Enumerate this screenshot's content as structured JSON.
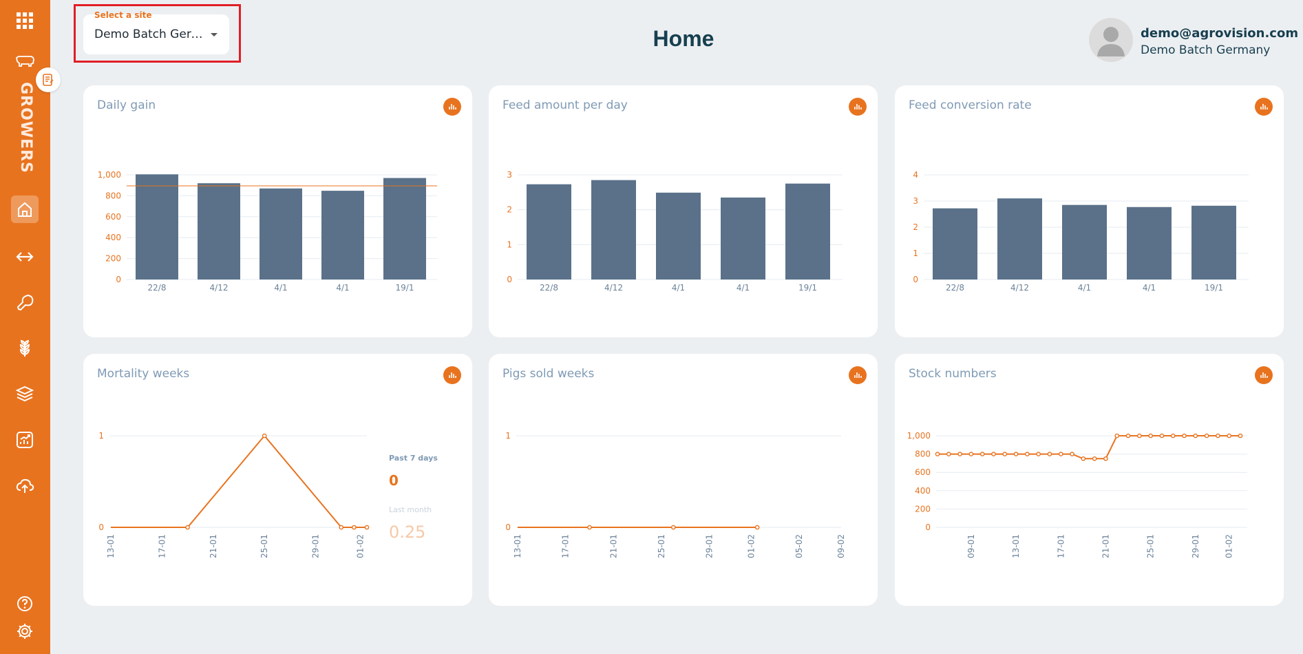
{
  "header": {
    "title": "Home",
    "site_label": "Select a site",
    "site_value": "Demo Batch Germ...",
    "user_email": "demo@agrovision.com",
    "user_site": "Demo Batch Germany"
  },
  "sidebar": {
    "section_label": "GROWERS",
    "items": [
      "apps-icon",
      "pig-icon",
      "notes-icon",
      "home-icon",
      "transfer-icon",
      "meat-icon",
      "grain-icon",
      "layers-icon",
      "chart-icon",
      "upload-icon",
      "help-icon",
      "settings-icon"
    ]
  },
  "colors": {
    "accent": "#e8731f",
    "bar": "#5a7189",
    "title": "#173f4f"
  },
  "cards": {
    "daily_gain": {
      "title": "Daily gain"
    },
    "feed_amount": {
      "title": "Feed amount per day"
    },
    "fcr": {
      "title": "Feed conversion rate"
    },
    "mortality": {
      "title": "Mortality weeks",
      "past_label": "Past 7 days",
      "past_value": "0",
      "month_label": "Last month",
      "month_value": "0.25"
    },
    "pigs_sold": {
      "title": "Pigs sold weeks"
    },
    "stock": {
      "title": "Stock numbers"
    }
  },
  "chart_data": [
    {
      "id": "daily_gain",
      "type": "bar",
      "title": "Daily gain",
      "categories": [
        "22/8",
        "4/12",
        "4/1",
        "4/1",
        "19/1"
      ],
      "values": [
        1005,
        920,
        870,
        848,
        970
      ],
      "yticks": [
        0,
        200,
        400,
        600,
        800,
        1000
      ],
      "ytick_labels": [
        "0",
        "200",
        "400",
        "600",
        "800",
        "1,000"
      ],
      "ylim": [
        0,
        1000
      ],
      "reference_line": 895
    },
    {
      "id": "feed_amount",
      "type": "bar",
      "title": "Feed amount per day",
      "categories": [
        "22/8",
        "4/12",
        "4/1",
        "4/1",
        "19/1"
      ],
      "values": [
        2.73,
        2.85,
        2.49,
        2.35,
        2.75
      ],
      "yticks": [
        0,
        1,
        2,
        3
      ],
      "ytick_labels": [
        "0",
        "1",
        "2",
        "3"
      ],
      "ylim": [
        0,
        3
      ]
    },
    {
      "id": "fcr",
      "type": "bar",
      "title": "Feed conversion rate",
      "categories": [
        "22/8",
        "4/12",
        "4/1",
        "4/1",
        "19/1"
      ],
      "values": [
        2.72,
        3.1,
        2.85,
        2.77,
        2.82
      ],
      "yticks": [
        0,
        1,
        2,
        3,
        4
      ],
      "ytick_labels": [
        "0",
        "1",
        "2",
        "3",
        "4"
      ],
      "ylim": [
        0,
        4
      ]
    },
    {
      "id": "mortality",
      "type": "line",
      "title": "Mortality weeks",
      "x": [
        0,
        6,
        12,
        18,
        19,
        20
      ],
      "values": [
        0,
        0,
        1,
        0,
        0,
        0
      ],
      "x_domain": [
        0,
        20
      ],
      "x_ticks": [
        "13-01",
        "17-01",
        "21-01",
        "25-01",
        "29-01",
        "01-02"
      ],
      "x_tick_pos": [
        0,
        4,
        8,
        12,
        16,
        19.5
      ],
      "yticks": [
        0,
        1
      ],
      "ytick_labels": [
        "0",
        "1"
      ],
      "ylim": [
        0,
        1
      ]
    },
    {
      "id": "pigs_sold",
      "type": "line",
      "title": "Pigs sold weeks",
      "x": [
        6,
        13,
        20
      ],
      "values": [
        0,
        0,
        0
      ],
      "x_domain": [
        0,
        27
      ],
      "line_from": 0,
      "x_ticks": [
        "13-01",
        "17-01",
        "21-01",
        "25-01",
        "29-01",
        "01-02",
        "05-02",
        "09-02"
      ],
      "x_tick_pos": [
        0,
        4,
        8,
        12,
        16,
        19.5,
        23.5,
        27
      ],
      "yticks": [
        0,
        1
      ],
      "ytick_labels": [
        "0",
        "1"
      ],
      "ylim": [
        0,
        1
      ]
    },
    {
      "id": "stock",
      "type": "line",
      "title": "Stock numbers",
      "x": [
        0,
        1,
        2,
        3,
        4,
        5,
        6,
        7,
        8,
        9,
        10,
        11,
        12,
        13,
        14,
        15,
        16,
        17,
        18,
        19,
        20,
        21,
        22,
        23,
        24,
        25,
        26,
        27
      ],
      "values": [
        800,
        800,
        800,
        800,
        800,
        800,
        800,
        800,
        800,
        800,
        800,
        800,
        800,
        750,
        750,
        750,
        1000,
        1000,
        1000,
        1000,
        1000,
        1000,
        1000,
        1000,
        1000,
        1000,
        1000,
        1000
      ],
      "x_domain": [
        0,
        27
      ],
      "x_ticks": [
        "09-01",
        "13-01",
        "17-01",
        "21-01",
        "25-01",
        "29-01",
        "01-02"
      ],
      "x_tick_pos": [
        3,
        7,
        11,
        15,
        19,
        23,
        26
      ],
      "yticks": [
        0,
        200,
        400,
        600,
        800,
        1000
      ],
      "ytick_labels": [
        "0",
        "200",
        "400",
        "600",
        "800",
        "1,000"
      ],
      "ylim": [
        0,
        1000
      ]
    }
  ]
}
